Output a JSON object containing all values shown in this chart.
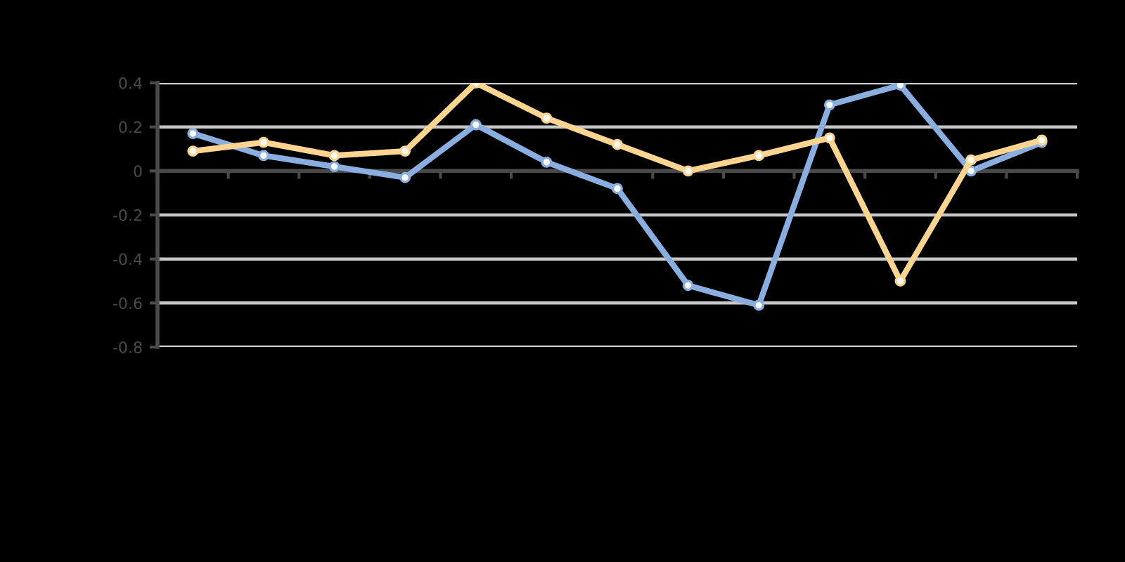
{
  "chart_data": {
    "type": "line",
    "categories": [
      null,
      null,
      null,
      null,
      null,
      null,
      null,
      null,
      null,
      null,
      null,
      null,
      null
    ],
    "series": [
      {
        "color": "#8aaee0",
        "values": [
          0.17,
          0.07,
          0.02,
          -0.03,
          0.21,
          0.04,
          -0.08,
          -0.52,
          -0.61,
          0.3,
          0.39,
          0.0,
          0.13
        ]
      },
      {
        "color": "#fdd590",
        "values": [
          0.09,
          0.13,
          0.07,
          0.09,
          0.4,
          0.24,
          0.12,
          0.0,
          0.07,
          0.15,
          -0.5,
          0.05,
          0.14
        ]
      }
    ],
    "ylim": [
      -0.8,
      0.4
    ],
    "yticks": [
      -0.8,
      -0.6,
      -0.4,
      -0.2,
      0,
      0.2,
      0.4
    ],
    "grid": "y",
    "marker": "circle",
    "line_style": "solid"
  }
}
